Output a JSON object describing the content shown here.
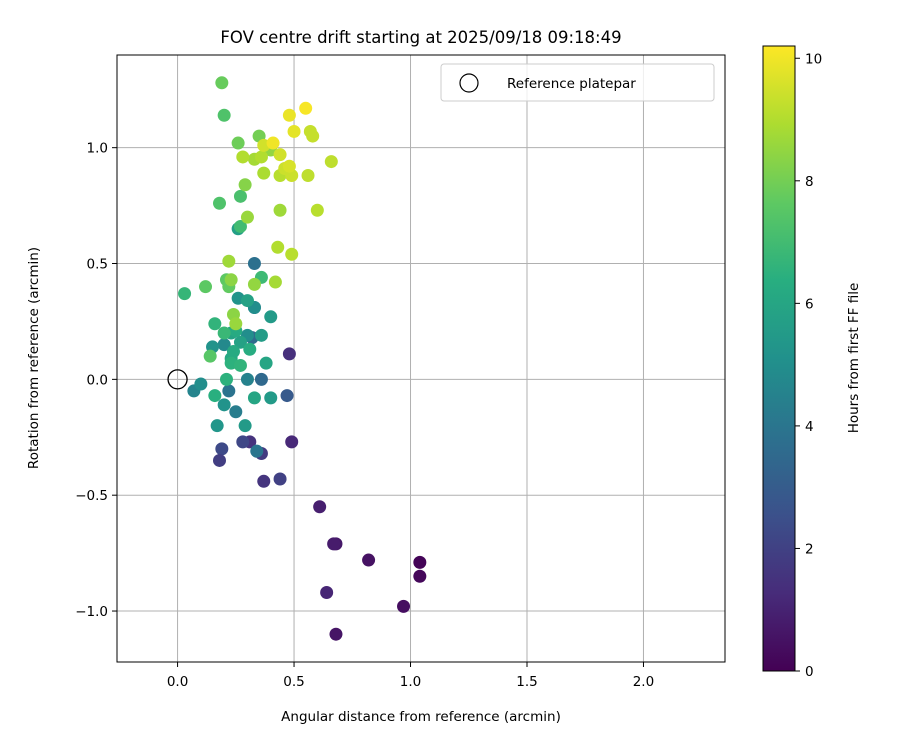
{
  "chart_data": {
    "type": "scatter",
    "title": "FOV centre drift starting at 2025/09/18 09:18:49",
    "xlabel": "Angular distance from reference (arcmin)",
    "ylabel": "Rotation from reference (arcmin)",
    "xlim": [
      -0.26,
      2.35
    ],
    "ylim": [
      -1.22,
      1.4
    ],
    "xticks": [
      0.0,
      0.5,
      1.0,
      1.5,
      2.0
    ],
    "xtick_labels": [
      "0.0",
      "0.5",
      "1.0",
      "1.5",
      "2.0"
    ],
    "yticks": [
      -1.0,
      -0.5,
      0.0,
      0.5,
      1.0
    ],
    "ytick_labels": [
      "−1.0",
      "−0.5",
      "0.0",
      "0.5",
      "1.0"
    ],
    "grid": true,
    "legend": {
      "label": "Reference platepar",
      "location": "top-right"
    },
    "reference_point": {
      "x": 0.0,
      "y": 0.0
    },
    "colorbar": {
      "label": "Hours from first FF file",
      "range": [
        0,
        10.2
      ],
      "ticks": [
        0,
        2,
        4,
        6,
        8,
        10
      ],
      "tick_labels": [
        "0",
        "2",
        "4",
        "6",
        "8",
        "10"
      ],
      "colormap": "viridis"
    },
    "points": [
      {
        "x": 1.04,
        "y": -0.79,
        "h": 0.1
      },
      {
        "x": 1.04,
        "y": -0.85,
        "h": 0.2
      },
      {
        "x": 0.97,
        "y": -0.98,
        "h": 0.4
      },
      {
        "x": 0.82,
        "y": -0.78,
        "h": 0.5
      },
      {
        "x": 0.68,
        "y": -1.1,
        "h": 0.6
      },
      {
        "x": 0.68,
        "y": -0.71,
        "h": 0.7
      },
      {
        "x": 0.67,
        "y": -0.71,
        "h": 0.8
      },
      {
        "x": 0.61,
        "y": -0.55,
        "h": 0.9
      },
      {
        "x": 0.64,
        "y": -0.92,
        "h": 1.1
      },
      {
        "x": 0.49,
        "y": -0.27,
        "h": 1.2
      },
      {
        "x": 0.48,
        "y": 0.11,
        "h": 1.4
      },
      {
        "x": 0.37,
        "y": -0.44,
        "h": 1.6
      },
      {
        "x": 0.44,
        "y": -0.43,
        "h": 2.0
      },
      {
        "x": 0.31,
        "y": -0.27,
        "h": 1.5
      },
      {
        "x": 0.36,
        "y": -0.32,
        "h": 1.8
      },
      {
        "x": 0.28,
        "y": -0.27,
        "h": 2.2
      },
      {
        "x": 0.19,
        "y": -0.3,
        "h": 2.3
      },
      {
        "x": 0.18,
        "y": -0.35,
        "h": 1.9
      },
      {
        "x": 0.47,
        "y": -0.07,
        "h": 2.9
      },
      {
        "x": 0.33,
        "y": 0.31,
        "h": 3.4
      },
      {
        "x": 0.36,
        "y": 0.0,
        "h": 3.5
      },
      {
        "x": 0.33,
        "y": 0.5,
        "h": 3.8
      },
      {
        "x": 0.22,
        "y": -0.05,
        "h": 3.9
      },
      {
        "x": 0.34,
        "y": -0.31,
        "h": 4.0
      },
      {
        "x": 0.32,
        "y": 0.18,
        "h": 3.6
      },
      {
        "x": 0.25,
        "y": -0.14,
        "h": 4.3
      },
      {
        "x": 0.3,
        "y": 0.0,
        "h": 4.5
      },
      {
        "x": 0.07,
        "y": -0.05,
        "h": 4.6
      },
      {
        "x": 0.2,
        "y": 0.15,
        "h": 4.8
      },
      {
        "x": 0.1,
        "y": -0.02,
        "h": 5.0
      },
      {
        "x": 0.3,
        "y": 0.19,
        "h": 5.0
      },
      {
        "x": 0.33,
        "y": 0.31,
        "h": 5.0
      },
      {
        "x": 0.15,
        "y": 0.14,
        "h": 5.2
      },
      {
        "x": 0.2,
        "y": -0.11,
        "h": 5.2
      },
      {
        "x": 0.26,
        "y": 0.35,
        "h": 5.2
      },
      {
        "x": 0.17,
        "y": -0.2,
        "h": 5.3
      },
      {
        "x": 0.4,
        "y": 0.27,
        "h": 5.5
      },
      {
        "x": 0.29,
        "y": -0.2,
        "h": 5.5
      },
      {
        "x": 0.4,
        "y": -0.08,
        "h": 5.5
      },
      {
        "x": 0.36,
        "y": 0.19,
        "h": 5.6
      },
      {
        "x": 0.26,
        "y": 0.65,
        "h": 5.7
      },
      {
        "x": 0.27,
        "y": 0.16,
        "h": 5.8
      },
      {
        "x": 0.3,
        "y": 0.34,
        "h": 5.8
      },
      {
        "x": 0.23,
        "y": 0.2,
        "h": 5.9
      },
      {
        "x": 0.33,
        "y": -0.08,
        "h": 6.0
      },
      {
        "x": 0.38,
        "y": 0.07,
        "h": 6.0
      },
      {
        "x": 0.23,
        "y": 0.09,
        "h": 6.1
      },
      {
        "x": 0.25,
        "y": 0.21,
        "h": 6.2
      },
      {
        "x": 0.24,
        "y": 0.12,
        "h": 6.2
      },
      {
        "x": 0.31,
        "y": 0.13,
        "h": 6.3
      },
      {
        "x": 0.16,
        "y": -0.07,
        "h": 6.4
      },
      {
        "x": 0.21,
        "y": 0.0,
        "h": 6.5
      },
      {
        "x": 0.23,
        "y": 0.07,
        "h": 6.5
      },
      {
        "x": 0.27,
        "y": 0.06,
        "h": 6.6
      },
      {
        "x": 0.16,
        "y": 0.24,
        "h": 6.6
      },
      {
        "x": 0.03,
        "y": 0.37,
        "h": 6.7
      },
      {
        "x": 0.2,
        "y": 0.2,
        "h": 6.8
      },
      {
        "x": 0.36,
        "y": 0.44,
        "h": 6.9
      },
      {
        "x": 0.27,
        "y": 0.66,
        "h": 7.0
      },
      {
        "x": 0.27,
        "y": 0.79,
        "h": 7.2
      },
      {
        "x": 0.2,
        "y": 1.14,
        "h": 7.3
      },
      {
        "x": 0.18,
        "y": 0.76,
        "h": 7.3
      },
      {
        "x": 0.14,
        "y": 0.1,
        "h": 7.5
      },
      {
        "x": 0.12,
        "y": 0.4,
        "h": 7.6
      },
      {
        "x": 0.21,
        "y": 0.43,
        "h": 7.6
      },
      {
        "x": 0.22,
        "y": 0.4,
        "h": 7.7
      },
      {
        "x": 0.19,
        "y": 1.28,
        "h": 7.8
      },
      {
        "x": 0.26,
        "y": 1.02,
        "h": 7.9
      },
      {
        "x": 0.35,
        "y": 1.05,
        "h": 8.0
      },
      {
        "x": 0.29,
        "y": 0.84,
        "h": 8.3
      },
      {
        "x": 0.24,
        "y": 0.28,
        "h": 8.4
      },
      {
        "x": 0.23,
        "y": 0.43,
        "h": 8.4
      },
      {
        "x": 0.33,
        "y": 0.41,
        "h": 8.5
      },
      {
        "x": 0.4,
        "y": 0.99,
        "h": 8.5
      },
      {
        "x": 0.3,
        "y": 0.7,
        "h": 8.6
      },
      {
        "x": 0.25,
        "y": 0.24,
        "h": 8.6
      },
      {
        "x": 0.22,
        "y": 0.51,
        "h": 8.7
      },
      {
        "x": 0.44,
        "y": 0.73,
        "h": 8.7
      },
      {
        "x": 0.33,
        "y": 0.95,
        "h": 8.8
      },
      {
        "x": 0.42,
        "y": 0.42,
        "h": 8.8
      },
      {
        "x": 0.37,
        "y": 0.89,
        "h": 8.9
      },
      {
        "x": 0.28,
        "y": 0.96,
        "h": 9.0
      },
      {
        "x": 0.36,
        "y": 0.96,
        "h": 9.0
      },
      {
        "x": 0.43,
        "y": 0.57,
        "h": 9.0
      },
      {
        "x": 0.49,
        "y": 0.54,
        "h": 9.1
      },
      {
        "x": 0.44,
        "y": 0.88,
        "h": 9.1
      },
      {
        "x": 0.6,
        "y": 0.73,
        "h": 9.1
      },
      {
        "x": 0.66,
        "y": 0.94,
        "h": 9.2
      },
      {
        "x": 0.56,
        "y": 0.88,
        "h": 9.2
      },
      {
        "x": 0.57,
        "y": 1.07,
        "h": 9.3
      },
      {
        "x": 0.58,
        "y": 1.05,
        "h": 9.3
      },
      {
        "x": 0.46,
        "y": 0.91,
        "h": 9.4
      },
      {
        "x": 0.49,
        "y": 0.88,
        "h": 9.4
      },
      {
        "x": 0.37,
        "y": 1.01,
        "h": 9.5
      },
      {
        "x": 0.44,
        "y": 0.97,
        "h": 9.5
      },
      {
        "x": 0.48,
        "y": 0.92,
        "h": 9.6
      },
      {
        "x": 0.5,
        "y": 1.07,
        "h": 9.8
      },
      {
        "x": 0.48,
        "y": 1.14,
        "h": 9.9
      },
      {
        "x": 0.41,
        "y": 1.02,
        "h": 10.0
      },
      {
        "x": 0.55,
        "y": 1.17,
        "h": 10.1
      }
    ]
  }
}
